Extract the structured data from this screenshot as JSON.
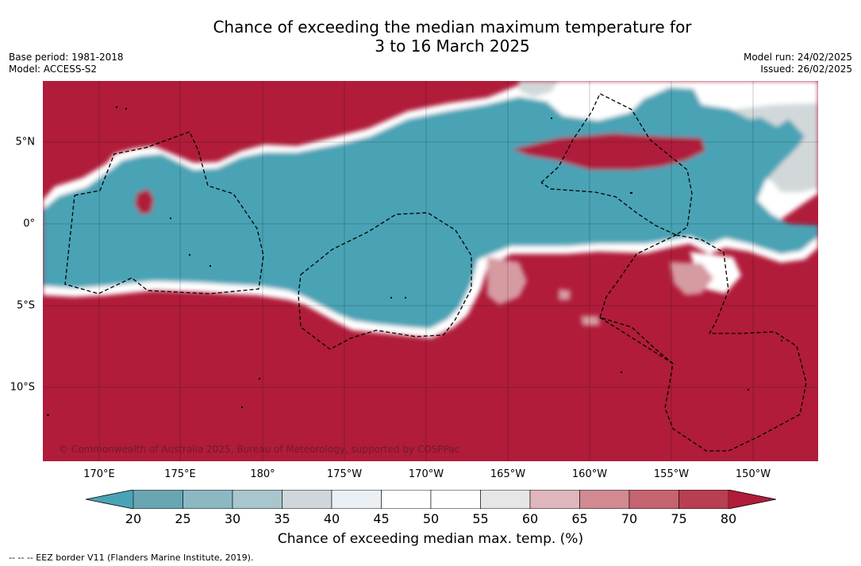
{
  "title_line1": "Chance of exceeding the median maximum temperature for",
  "title_line2": "3 to 16 March 2025",
  "base_period": "Base period: 1981-2018",
  "model": "Model: ACCESS-S2",
  "model_run": "Model run: 24/02/2025",
  "issued": "Issued: 26/02/2025",
  "copyright": "© Commonwealth of Australia 2025, Bureau of Meteorology, supported by COSPPac",
  "lon_labels": [
    "170°E",
    "175°E",
    "180°",
    "175°W",
    "170°W",
    "165°W",
    "160°W",
    "155°W",
    "150°W"
  ],
  "lat_labels": [
    "5°N",
    "0°",
    "5°S",
    "10°S"
  ],
  "colorbar": {
    "ticks": [
      "20",
      "25",
      "30",
      "35",
      "40",
      "45",
      "50",
      "55",
      "60",
      "65",
      "70",
      "75",
      "80"
    ],
    "colors": [
      "#6aa6b2",
      "#8bb8c3",
      "#a9c6cc",
      "#cfd7da",
      "#eaf0f3",
      "#ffffff",
      "#ffffff",
      "#e6e6e6",
      "#dfb6bc",
      "#d18a92",
      "#c56470",
      "#b73f51"
    ],
    "low_color": "#4aa3b5",
    "high_color": "#b01c3a",
    "label": "Chance of exceeding median max. temp. (%)"
  },
  "map_colors": {
    "below": "#4aa3b5",
    "above": "#b01c3a",
    "neutral": "#ffffff",
    "light_grey": "#d2d8da",
    "pink": "#d69aa1"
  },
  "eez_legend": "--  --  -- EEZ border V11 (Flanders Marine Institute, 2019)."
}
